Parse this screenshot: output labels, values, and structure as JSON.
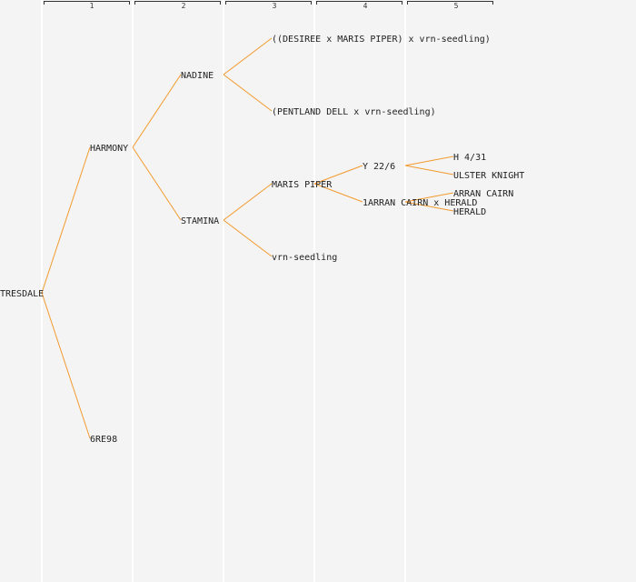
{
  "generation_headers": [
    "1",
    "2",
    "3",
    "4",
    "5"
  ],
  "colors": {
    "background": "#f4f4f4",
    "link": "#f39a2e",
    "text": "#222222",
    "column_line": "#ffffff",
    "bracket": "#333333"
  },
  "nodes": {
    "root": "TRESDALE",
    "p1": "HARMONY",
    "p2": "6RE98",
    "p1_1": "NADINE",
    "p1_2": "STAMINA",
    "p1_1_1": "((DESIREE x MARIS PIPER) x vrn-seedling)",
    "p1_1_2": "(PENTLAND DELL x vrn-seedling)",
    "p1_2_1": "MARIS PIPER",
    "p1_2_2": "vrn-seedling",
    "p1_2_1_1": "Y 22/6",
    "p1_2_1_2": "1ARRAN CAIRN x HERALD",
    "p1_2_1_1_1": "H 4/31",
    "p1_2_1_1_2": "ULSTER KNIGHT",
    "p1_2_1_2_1": "ARRAN CAIRN",
    "p1_2_1_2_2": "HERALD"
  }
}
